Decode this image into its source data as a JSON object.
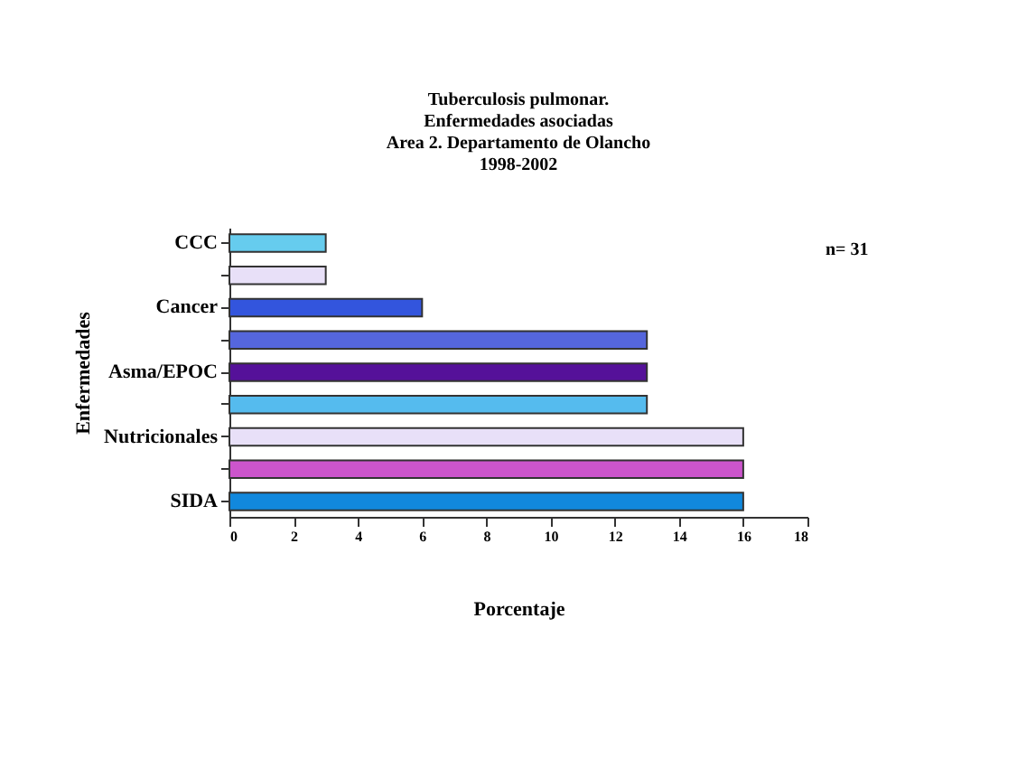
{
  "chart_data": {
    "type": "bar",
    "orientation": "horizontal",
    "title": [
      "Tuberculosis pulmonar.",
      "Enfermedades asociadas",
      "Area 2. Departamento de Olancho",
      "1998-2002"
    ],
    "xlabel": "Porcentaje",
    "ylabel": "Enfermedades",
    "categories": [
      "CCC",
      null,
      "Cancer",
      null,
      "Asma/EPOC",
      null,
      "Nutricionales",
      null,
      "SIDA"
    ],
    "values": [
      3,
      3,
      6,
      13,
      13,
      13,
      16,
      16,
      16
    ],
    "colors": [
      "#66ccee",
      "#e8e0f8",
      "#3355dd",
      "#5566dd",
      "#551199",
      "#55bbee",
      "#e8e0f8",
      "#cc55cc",
      "#1188dd"
    ],
    "xlim": [
      0,
      18
    ],
    "xticks": [
      0,
      2,
      4,
      6,
      8,
      10,
      12,
      14,
      16,
      18
    ],
    "grid": false,
    "legend": false,
    "annotations": [
      "n= 31"
    ]
  }
}
